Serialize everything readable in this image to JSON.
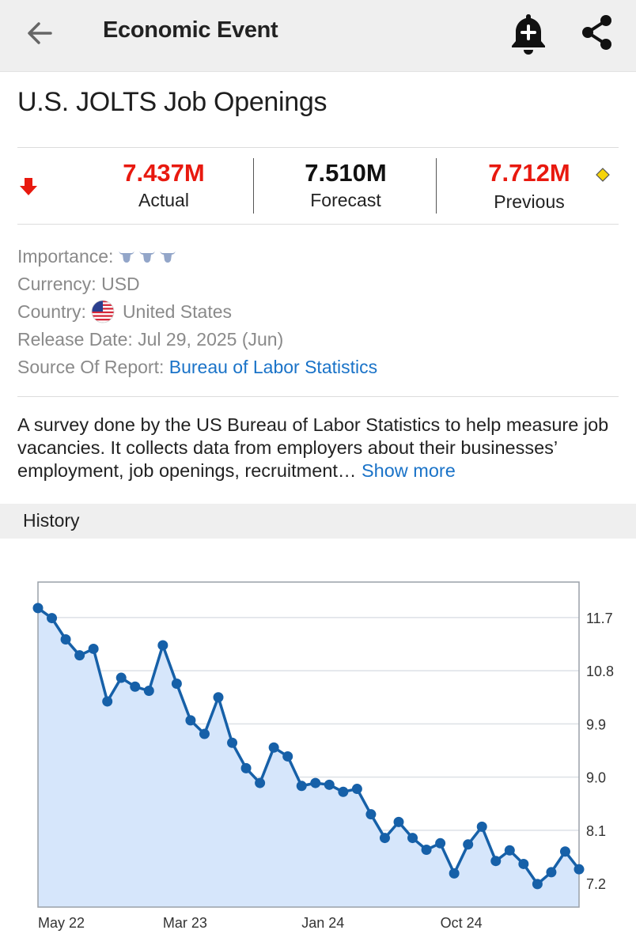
{
  "header": {
    "title": "Economic Event",
    "back_icon": "arrow-left-icon",
    "alert_icon": "bell-plus-icon",
    "share_icon": "share-icon"
  },
  "event": {
    "title": "U.S. JOLTS Job Openings",
    "trend_icon": "arrow-down-icon",
    "actual": {
      "value": "7.437M",
      "label": "Actual"
    },
    "forecast": {
      "value": "7.510M",
      "label": "Forecast"
    },
    "previous": {
      "value": "7.712M",
      "label": "Previous"
    },
    "revised_icon": "diamond-icon"
  },
  "info": {
    "importance_label": "Importance:",
    "importance_icon": "bull-icon",
    "importance_level": 3,
    "currency_label": "Currency:",
    "currency": "USD",
    "country_label": "Country:",
    "country": "United States",
    "country_icon": "us-flag-icon",
    "release_label": "Release Date:",
    "release_date": "Jul 29, 2025 (Jun)",
    "source_label": "Source Of Report:",
    "source": "Bureau of Labor Statistics"
  },
  "description": {
    "text": "A survey done by the US Bureau of Labor Statistics to help measure job vacancies. It collects data from employers about their businesses’ employment, job openings, recruitment…",
    "show_more": "Show more"
  },
  "history": {
    "title": "History"
  },
  "colors": {
    "negative": "#e8190f",
    "link": "#1a73c8",
    "line": "#1660a8",
    "area": "#d6e6fb"
  },
  "chart_data": {
    "type": "area",
    "title": "",
    "xlabel": "",
    "ylabel": "",
    "x_ticks": [
      "May 22",
      "Mar 23",
      "Jan 24",
      "Oct 24"
    ],
    "x_tick_index": [
      0,
      9,
      19,
      29
    ],
    "y_ticks": [
      11.7,
      10.8,
      9.9,
      9.0,
      8.1,
      7.2
    ],
    "ylim": [
      6.8,
      12.3
    ],
    "y_axis_position": "right",
    "grid": true,
    "legend": "none",
    "series": [
      {
        "values": [
          11.86,
          11.69,
          11.33,
          11.06,
          11.17,
          10.28,
          10.68,
          10.53,
          10.46,
          11.23,
          10.58,
          9.96,
          9.73,
          10.35,
          9.58,
          9.15,
          8.9,
          9.5,
          9.35,
          8.85,
          8.9,
          8.87,
          8.75,
          8.8,
          8.37,
          7.97,
          8.24,
          7.97,
          7.77,
          7.88,
          7.37,
          7.86,
          8.16,
          7.58,
          7.76,
          7.53,
          7.19,
          7.39,
          7.74,
          7.44
        ]
      }
    ]
  }
}
